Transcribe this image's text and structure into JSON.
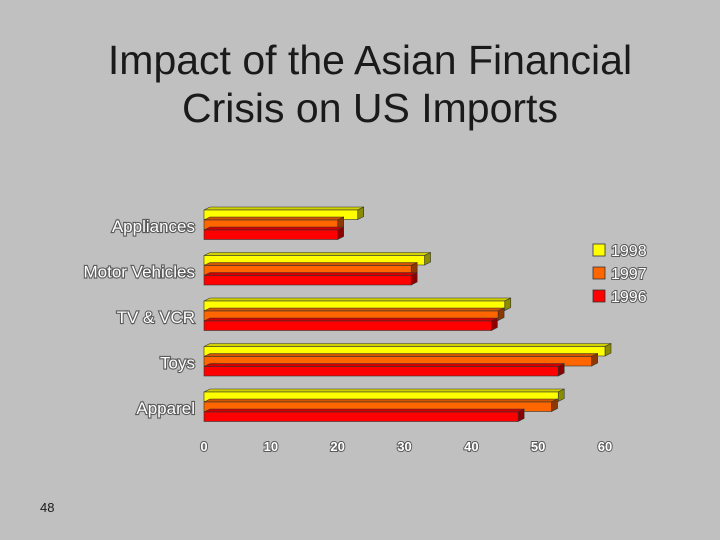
{
  "slide": {
    "title_line1": "Impact of the Asian Financial",
    "title_line2": "Crisis on US Imports",
    "page_number": "48"
  },
  "chart_data": {
    "type": "bar",
    "orientation": "horizontal",
    "categories": [
      "Appliances",
      "Motor Vehicles",
      "TV & VCR",
      "Toys",
      "Apparel"
    ],
    "series": [
      {
        "name": "1998",
        "values": [
          23,
          33,
          45,
          60,
          53
        ],
        "color": "#ffff00"
      },
      {
        "name": "1997",
        "values": [
          20,
          31,
          44,
          58,
          52
        ],
        "color": "#ff6600"
      },
      {
        "name": "1996",
        "values": [
          20,
          31,
          43,
          53,
          47
        ],
        "color": "#ff0000"
      }
    ],
    "xlim": [
      0,
      60
    ],
    "xticks": [
      "0",
      "10",
      "20",
      "30",
      "40",
      "50",
      "60"
    ],
    "title": "",
    "xlabel": "",
    "ylabel": "",
    "grid": false,
    "legend_position": "top-right",
    "style": "3d"
  }
}
